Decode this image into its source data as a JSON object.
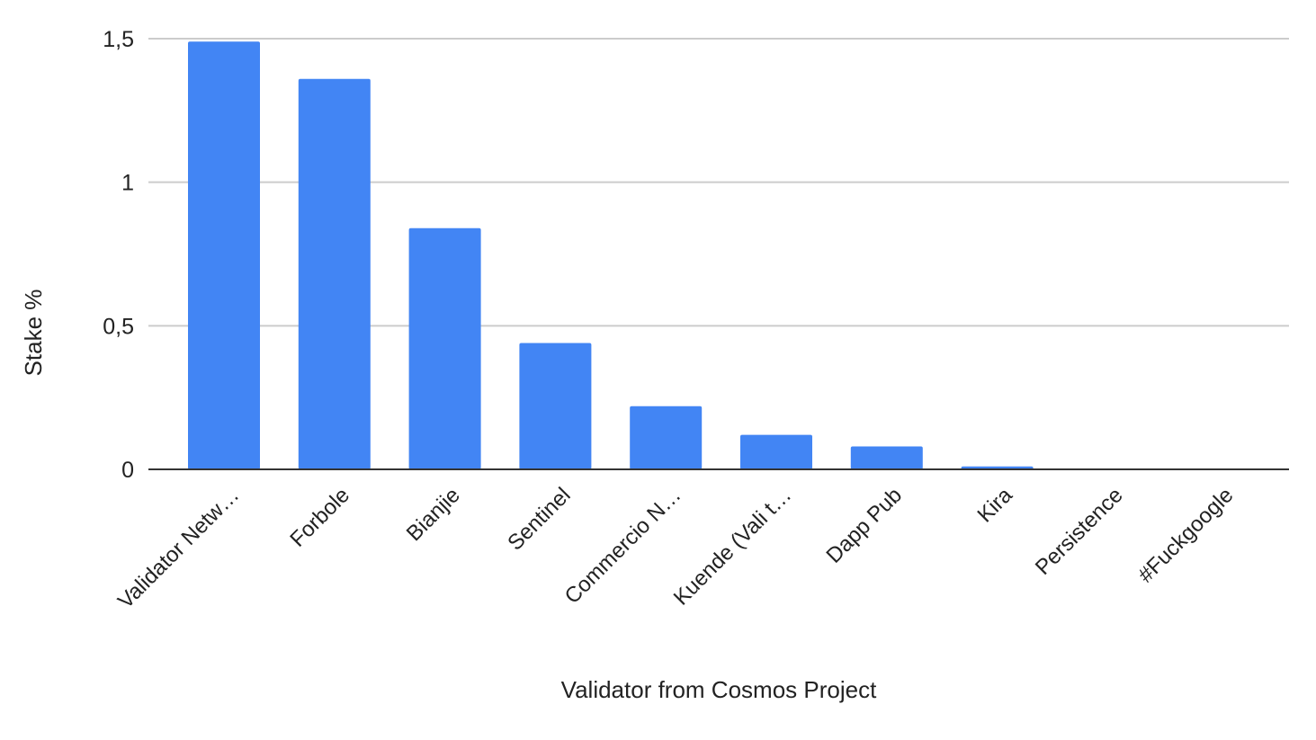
{
  "chart_data": {
    "type": "bar",
    "title": "",
    "xlabel": "Validator from Cosmos Project",
    "ylabel": "Stake %",
    "ylim": [
      0,
      1.5
    ],
    "yticks": [
      {
        "value": 0,
        "label": "0"
      },
      {
        "value": 0.5,
        "label": "0,5"
      },
      {
        "value": 1,
        "label": "1"
      },
      {
        "value": 1.5,
        "label": "1,5"
      }
    ],
    "categories": [
      "Validator Netw…",
      "Forbole",
      "Bianjie",
      "Sentinel",
      "Commercio N…",
      "Kuende (Vali t…",
      "Dapp Pub",
      "Kira",
      "Persistence",
      "#Fuckgoogle"
    ],
    "values": [
      1.49,
      1.36,
      0.84,
      0.44,
      0.22,
      0.12,
      0.08,
      0.01,
      0.0,
      0.0
    ],
    "bar_color": "#4285f4",
    "grid": true,
    "legend": "none"
  }
}
